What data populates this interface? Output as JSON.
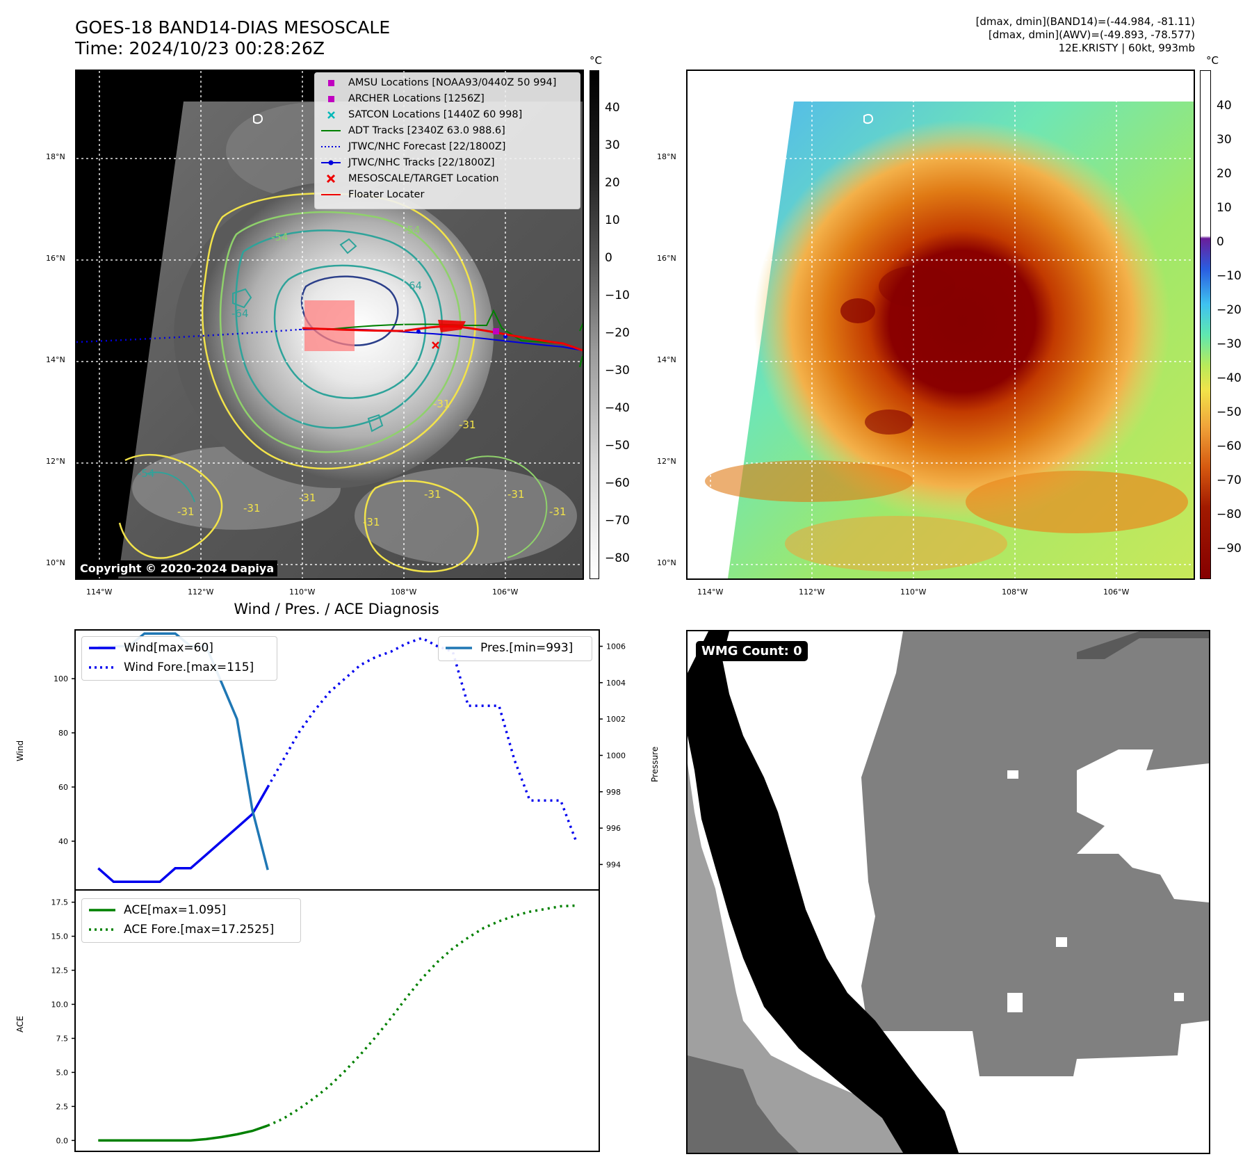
{
  "header": {
    "title_line1": "GOES-18 BAND14-DIAS MESOSCALE",
    "title_line2": "Time: 2024/10/23 00:28:26Z",
    "info_line1": "[dmax, dmin](BAND14)=(-44.984, -81.11)",
    "info_line2": "[dmax, dmin](AWV)=(-49.893, -78.577)",
    "info_line3": "12E.KRISTY | 60kt, 993mb"
  },
  "map_axes": {
    "lat_labels": [
      "18°N",
      "16°N",
      "14°N",
      "12°N",
      "10°N"
    ],
    "lon_labels": [
      "114°W",
      "112°W",
      "110°W",
      "108°W",
      "106°W"
    ]
  },
  "colorbar_left": {
    "unit": "°C",
    "ticks": [
      "40",
      "30",
      "20",
      "10",
      "0",
      "−10",
      "−20",
      "−30",
      "−40",
      "−50",
      "−60",
      "−70",
      "−80"
    ]
  },
  "colorbar_right": {
    "unit": "°C",
    "ticks": [
      "40",
      "30",
      "20",
      "10",
      "0",
      "−10",
      "−20",
      "−30",
      "−40",
      "−50",
      "−60",
      "−70",
      "−80",
      "−90"
    ]
  },
  "map_legend": [
    {
      "label": "AMSU Locations [NOAA93/0440Z 50 994]",
      "marker": "square",
      "color": "#c000c0"
    },
    {
      "label": "ARCHER Locations [1256Z]",
      "marker": "square",
      "color": "#c000c0"
    },
    {
      "label": "SATCON Locations [1440Z 60 998]",
      "marker": "x",
      "color": "#00b8b8"
    },
    {
      "label": "ADT Tracks [2340Z 63.0 988.6]",
      "marker": "line",
      "color": "#008000"
    },
    {
      "label": "JTWC/NHC Forecast [22/1800Z]",
      "marker": "dotted",
      "color": "#0000dd"
    },
    {
      "label": "JTWC/NHC Tracks [22/1800Z]",
      "marker": "line-dot",
      "color": "#0000dd"
    },
    {
      "label": "MESOSCALE/TARGET Location",
      "marker": "x",
      "color": "#ee0000"
    },
    {
      "label": "Floater Locater",
      "marker": "line",
      "color": "#ee0000"
    }
  ],
  "contour_labels": [
    "-54",
    "-54",
    "64",
    "-64",
    "-31",
    "-31",
    "-31",
    "-31",
    "-31",
    "-54",
    "-31",
    "-31",
    "-31",
    "-31"
  ],
  "copyright": "Copyright © 2020-2024 Dapiya",
  "wmg": {
    "label": "WMG Count: 0"
  },
  "chart_title": "Wind / Pres. / ACE Diagnosis",
  "chart_data": [
    {
      "type": "line",
      "title": "Wind / Pres. / ACE Diagnosis",
      "ylabel": "Wind",
      "y2label": "Pressure",
      "ylim": [
        22,
        118
      ],
      "y2lim": [
        992.6,
        1006.9
      ],
      "yticks": [
        40,
        60,
        80,
        100
      ],
      "y2ticks": [
        994,
        996,
        998,
        1000,
        1002,
        1004,
        1006
      ],
      "series": [
        {
          "name": "Wind[max=60]",
          "axis": "left",
          "style": "solid",
          "color": "#0000ee",
          "x": [
            0,
            1,
            2,
            3,
            4,
            5,
            6,
            7,
            8,
            9,
            10,
            11
          ],
          "y": [
            30,
            25,
            25,
            25,
            25,
            30,
            30,
            35,
            40,
            45,
            50,
            60
          ]
        },
        {
          "name": "Wind Fore.[max=115]",
          "axis": "left",
          "style": "dotted",
          "color": "#0000ee",
          "x": [
            11,
            12,
            13,
            14,
            15,
            16,
            17,
            18,
            19,
            20,
            21,
            22,
            23,
            24,
            25,
            26,
            27,
            28,
            29,
            30,
            31
          ],
          "y": [
            60,
            70,
            80,
            88,
            95,
            100,
            105,
            108,
            110,
            113,
            115,
            112,
            110,
            90,
            90,
            90,
            70,
            55,
            55,
            55,
            40
          ]
        },
        {
          "name": "Pres.[min=993]",
          "axis": "right",
          "style": "solid",
          "color": "#1f77b4",
          "x": [
            0,
            1,
            2,
            3,
            4,
            5,
            6,
            7,
            8,
            9,
            10,
            11
          ],
          "y": [
            1006,
            1006,
            1006,
            1006.7,
            1006.7,
            1006.7,
            1006,
            1006,
            1004,
            1002,
            997,
            993.7
          ]
        }
      ]
    },
    {
      "type": "line",
      "ylabel": "ACE",
      "ylim": [
        -0.8,
        18.4
      ],
      "yticks": [
        "0.0",
        "2.5",
        "5.0",
        "7.5",
        "10.0",
        "12.5",
        "15.0",
        "17.5"
      ],
      "series": [
        {
          "name": "ACE[max=1.095]",
          "style": "solid",
          "color": "#008000",
          "x": [
            0,
            1,
            2,
            3,
            4,
            5,
            6,
            7,
            8,
            9,
            10,
            11
          ],
          "y": [
            0,
            0,
            0,
            0,
            0,
            0,
            0,
            0.1,
            0.25,
            0.45,
            0.7,
            1.095
          ]
        },
        {
          "name": "ACE Fore.[max=17.2525]",
          "style": "dotted",
          "color": "#008000",
          "x": [
            11,
            12,
            13,
            14,
            15,
            16,
            17,
            18,
            19,
            20,
            21,
            22,
            23,
            24,
            25,
            26,
            27,
            28,
            29,
            30,
            31
          ],
          "y": [
            1.095,
            1.6,
            2.3,
            3.1,
            4.0,
            5.1,
            6.3,
            7.6,
            9.0,
            10.5,
            11.9,
            13.1,
            14.1,
            14.9,
            15.6,
            16.1,
            16.5,
            16.8,
            17.0,
            17.2,
            17.2525
          ]
        }
      ]
    }
  ]
}
